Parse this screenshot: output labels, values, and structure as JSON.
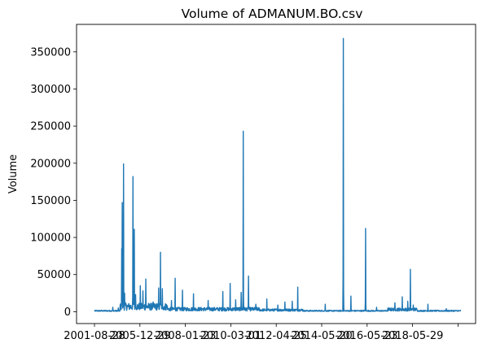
{
  "chart_data": {
    "type": "line",
    "title": "Volume of ADMANUM.BO.csv",
    "xlabel": "",
    "ylabel": "Volume",
    "series_color": "#1f77b4",
    "grid": false,
    "legend": "none",
    "xlim": [
      0.0,
      1.0
    ],
    "ylim": [
      -16000,
      387000
    ],
    "x_tick_labels": [
      "2001-08-28",
      "2005-12-29",
      "2008-01-23",
      "2010-03-01",
      "2012-04-25",
      "2014-05-20",
      "2016-05-23",
      "2018-05-29",
      ""
    ],
    "x_tick_positions": [
      0.0,
      0.124,
      0.248,
      0.372,
      0.496,
      0.62,
      0.744,
      0.868,
      0.992
    ],
    "y_ticks": [
      0,
      50000,
      100000,
      150000,
      200000,
      250000,
      300000,
      350000
    ],
    "y_tick_labels": [
      "0",
      "50000",
      "100000",
      "150000",
      "200000",
      "250000",
      "300000",
      "350000"
    ],
    "spikes": [
      {
        "x": 0.05,
        "y": 6000
      },
      {
        "x": 0.065,
        "y": 5000
      },
      {
        "x": 0.074,
        "y": 85000
      },
      {
        "x": 0.076,
        "y": 147000
      },
      {
        "x": 0.079,
        "y": 199000
      },
      {
        "x": 0.082,
        "y": 25000
      },
      {
        "x": 0.105,
        "y": 182000
      },
      {
        "x": 0.109,
        "y": 111000
      },
      {
        "x": 0.112,
        "y": 23000
      },
      {
        "x": 0.125,
        "y": 35000
      },
      {
        "x": 0.132,
        "y": 28000
      },
      {
        "x": 0.14,
        "y": 44000
      },
      {
        "x": 0.15,
        "y": 10000
      },
      {
        "x": 0.16,
        "y": 13000
      },
      {
        "x": 0.175,
        "y": 32000
      },
      {
        "x": 0.18,
        "y": 80000
      },
      {
        "x": 0.185,
        "y": 31000
      },
      {
        "x": 0.21,
        "y": 15000
      },
      {
        "x": 0.22,
        "y": 45000
      },
      {
        "x": 0.24,
        "y": 29000
      },
      {
        "x": 0.27,
        "y": 24000
      },
      {
        "x": 0.31,
        "y": 15000
      },
      {
        "x": 0.35,
        "y": 27000
      },
      {
        "x": 0.37,
        "y": 38000
      },
      {
        "x": 0.385,
        "y": 16000
      },
      {
        "x": 0.4,
        "y": 26000
      },
      {
        "x": 0.406,
        "y": 243000
      },
      {
        "x": 0.42,
        "y": 48000
      },
      {
        "x": 0.44,
        "y": 10000
      },
      {
        "x": 0.47,
        "y": 17000
      },
      {
        "x": 0.5,
        "y": 9000
      },
      {
        "x": 0.52,
        "y": 13000
      },
      {
        "x": 0.54,
        "y": 14000
      },
      {
        "x": 0.555,
        "y": 33000
      },
      {
        "x": 0.63,
        "y": 10000
      },
      {
        "x": 0.679,
        "y": 368000
      },
      {
        "x": 0.7,
        "y": 21000
      },
      {
        "x": 0.74,
        "y": 112000
      },
      {
        "x": 0.77,
        "y": 6000
      },
      {
        "x": 0.82,
        "y": 12000
      },
      {
        "x": 0.84,
        "y": 20000
      },
      {
        "x": 0.855,
        "y": 14000
      },
      {
        "x": 0.862,
        "y": 57000
      },
      {
        "x": 0.87,
        "y": 9000
      },
      {
        "x": 0.91,
        "y": 10000
      },
      {
        "x": 0.96,
        "y": 4000
      }
    ]
  }
}
